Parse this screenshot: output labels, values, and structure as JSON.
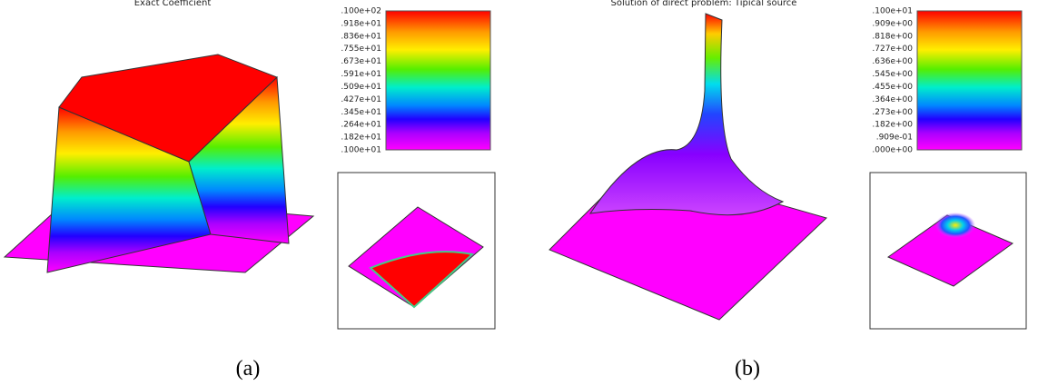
{
  "panels": [
    {
      "title": "Exact Coefficient",
      "colorbar_labels": [
        ".100e+02",
        ".918e+01",
        ".836e+01",
        ".755e+01",
        ".673e+01",
        ".591e+01",
        ".509e+01",
        ".427e+01",
        ".345e+01",
        ".264e+01",
        ".182e+01",
        ".100e+01"
      ],
      "caption": "(a)"
    },
    {
      "title": "Solution of direct problem: Tipical source",
      "colorbar_labels": [
        ".100e+01",
        ".909e+00",
        ".818e+00",
        ".727e+00",
        ".636e+00",
        ".545e+00",
        ".455e+00",
        ".364e+00",
        ".273e+00",
        ".182e+00",
        ".909e-01",
        ".000e+00"
      ],
      "caption": "(b)"
    }
  ]
}
